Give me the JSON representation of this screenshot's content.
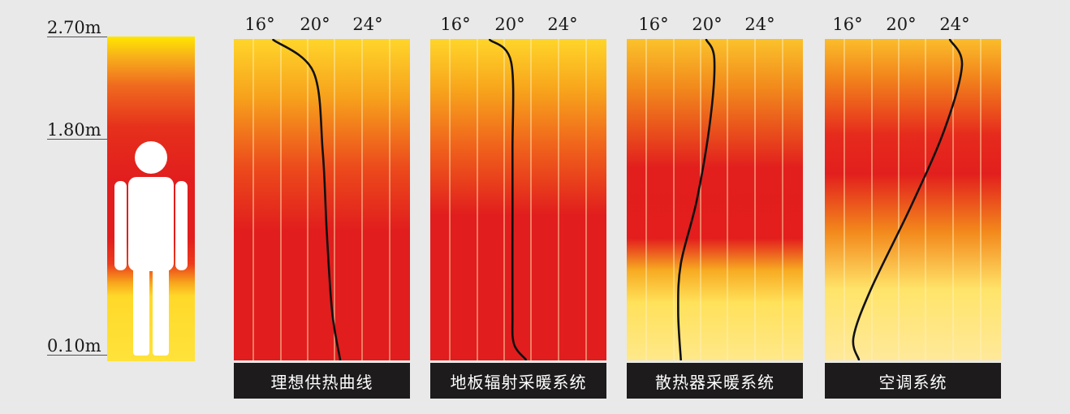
{
  "colors": {
    "background": "#e9e9ea",
    "hot": "#e11d1d",
    "warm": "#f39a1b",
    "cool": "#ffe14a",
    "curve": "#111111",
    "caption_bg": "#1d1b1b"
  },
  "heights": [
    "2.70m",
    "1.80m",
    "0.10m"
  ],
  "temperature_ticks": [
    "16°",
    "20°",
    "24°"
  ],
  "panels": [
    {
      "caption": "理想供热曲线",
      "gradient": [
        [
          0,
          "#ffd52a"
        ],
        [
          0.18,
          "#f7a21c"
        ],
        [
          0.4,
          "#ec4a1c"
        ],
        [
          0.6,
          "#e11d1d"
        ],
        [
          1,
          "#e11d1d"
        ]
      ],
      "curve": [
        [
          17,
          0
        ],
        [
          20,
          0.1
        ],
        [
          20.7,
          0.35
        ],
        [
          21,
          0.6
        ],
        [
          21.4,
          0.85
        ],
        [
          22,
          1
        ]
      ]
    },
    {
      "caption": "地板辐射采暖系统",
      "gradient": [
        [
          0,
          "#ffd52a"
        ],
        [
          0.15,
          "#f8a71c"
        ],
        [
          0.35,
          "#ef5d1c"
        ],
        [
          0.55,
          "#e11d1d"
        ],
        [
          1,
          "#e11d1d"
        ]
      ],
      "curve": [
        [
          18.5,
          0
        ],
        [
          20.1,
          0.07
        ],
        [
          20.2,
          0.35
        ],
        [
          20.2,
          0.6
        ],
        [
          20.2,
          0.85
        ],
        [
          20.3,
          0.95
        ],
        [
          21.2,
          1
        ]
      ]
    },
    {
      "caption": "散热器采暖系统",
      "gradient": [
        [
          0,
          "#fbc22b"
        ],
        [
          0.15,
          "#f28a1c"
        ],
        [
          0.4,
          "#e21f1d"
        ],
        [
          0.62,
          "#e31e1d"
        ],
        [
          0.72,
          "#f7ab22"
        ],
        [
          0.82,
          "#ffe15a"
        ],
        [
          1,
          "#ffe88a"
        ]
      ],
      "curve": [
        [
          20,
          0
        ],
        [
          20.6,
          0.06
        ],
        [
          20.3,
          0.25
        ],
        [
          19.3,
          0.5
        ],
        [
          18.1,
          0.7
        ],
        [
          17.9,
          0.85
        ],
        [
          18.1,
          1
        ]
      ]
    },
    {
      "caption": "空调系统",
      "gradient": [
        [
          0,
          "#fbbd2b"
        ],
        [
          0.12,
          "#f2841c"
        ],
        [
          0.3,
          "#e62a1d"
        ],
        [
          0.42,
          "#e21f1d"
        ],
        [
          0.6,
          "#f3891c"
        ],
        [
          0.78,
          "#ffe46a"
        ],
        [
          1,
          "#ffe99a"
        ]
      ],
      "curve": [
        [
          23.4,
          0
        ],
        [
          24.3,
          0.08
        ],
        [
          23,
          0.28
        ],
        [
          20.5,
          0.52
        ],
        [
          17.5,
          0.78
        ],
        [
          16.2,
          0.93
        ],
        [
          16.6,
          1
        ]
      ]
    }
  ]
}
